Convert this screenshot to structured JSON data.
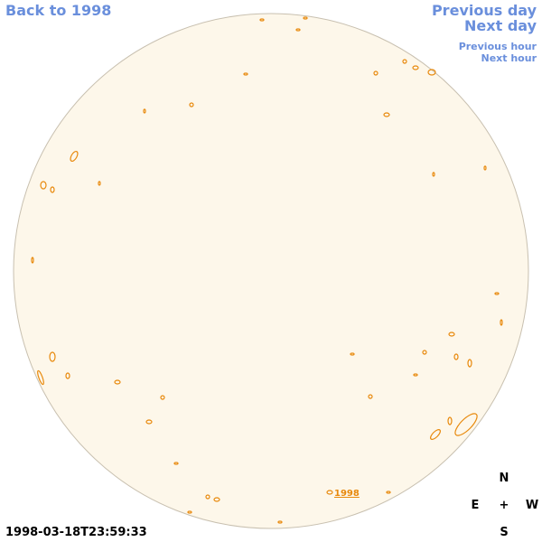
{
  "nav": {
    "back": "Back to 1998",
    "previous_day": "Previous day",
    "next_day": "Next day",
    "previous_hour": "Previous hour",
    "next_hour": "Next hour"
  },
  "timestamp": "1998-03-18T23:59:33",
  "disk_label": "1998",
  "compass": {
    "north": "N",
    "east": "E",
    "center": "+",
    "west": "W",
    "south": "S"
  }
}
